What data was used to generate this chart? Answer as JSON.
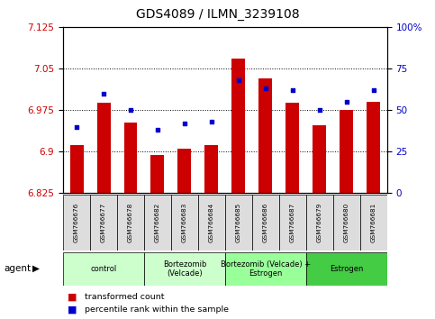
{
  "title": "GDS4089 / ILMN_3239108",
  "samples": [
    "GSM766676",
    "GSM766677",
    "GSM766678",
    "GSM766682",
    "GSM766683",
    "GSM766684",
    "GSM766685",
    "GSM766686",
    "GSM766687",
    "GSM766679",
    "GSM766680",
    "GSM766681"
  ],
  "red_values": [
    6.912,
    6.988,
    6.952,
    6.893,
    6.905,
    6.912,
    7.068,
    7.032,
    6.988,
    6.948,
    6.975,
    6.99
  ],
  "blue_values": [
    40,
    60,
    50,
    38,
    42,
    43,
    68,
    63,
    62,
    50,
    55,
    62
  ],
  "ymin": 6.825,
  "ymax": 7.125,
  "y2min": 0,
  "y2max": 100,
  "yticks": [
    6.825,
    6.9,
    6.975,
    7.05,
    7.125
  ],
  "ytick_labels": [
    "6.825",
    "6.9",
    "6.975",
    "7.05",
    "7.125"
  ],
  "y2ticks": [
    0,
    25,
    50,
    75,
    100
  ],
  "y2tick_labels": [
    "0",
    "25",
    "50",
    "75",
    "100%"
  ],
  "bar_color": "#CC0000",
  "dot_color": "#0000CC",
  "bar_bottom": 6.825,
  "groups": [
    {
      "label": "control",
      "start": 0,
      "end": 3,
      "color": "#CCFFCC"
    },
    {
      "label": "Bortezomib\n(Velcade)",
      "start": 3,
      "end": 6,
      "color": "#CCFFCC"
    },
    {
      "label": "Bortezomib (Velcade) +\nEstrogen",
      "start": 6,
      "end": 9,
      "color": "#99FF99"
    },
    {
      "label": "Estrogen",
      "start": 9,
      "end": 12,
      "color": "#44CC44"
    }
  ],
  "legend_red": "transformed count",
  "legend_blue": "percentile rank within the sample",
  "agent_label": "agent",
  "bar_color_leg": "#CC0000",
  "dot_color_leg": "#0000CC",
  "red_color": "#CC0000",
  "blue_color": "#0000CC",
  "grid_color": "#000000",
  "title_fontsize": 10,
  "tick_fontsize": 7.5,
  "bar_width": 0.5,
  "xlim": [
    -0.5,
    11.5
  ]
}
